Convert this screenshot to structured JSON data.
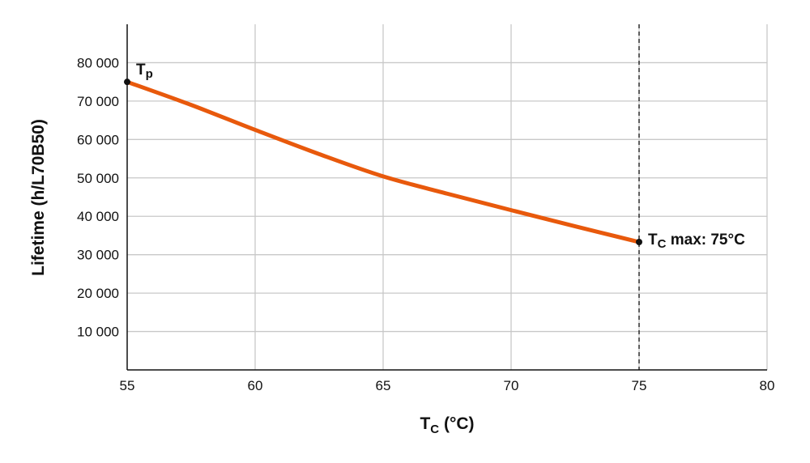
{
  "chart_data": {
    "type": "line",
    "xlabel": {
      "main": "T",
      "sub": "C",
      "rest": " (°C)"
    },
    "ylabel": "Lifetime (h/L70B50)",
    "xlim": [
      55,
      80
    ],
    "ylim": [
      0,
      90000
    ],
    "grid": true,
    "xticks": [
      55,
      60,
      65,
      70,
      75,
      80
    ],
    "xtick_labels": [
      "55",
      "60",
      "65",
      "70",
      "75",
      "80"
    ],
    "yticks": [
      10000,
      20000,
      30000,
      40000,
      50000,
      60000,
      70000,
      80000
    ],
    "ytick_labels": [
      "10 000",
      "20 000",
      "30 000",
      "40 000",
      "50 000",
      "60 000",
      "70 000",
      "80 000"
    ],
    "series": [
      {
        "color": "#e8590c",
        "x": [
          55,
          57.5,
          60,
          62.5,
          65,
          67.5,
          70,
          72.5,
          75
        ],
        "y": [
          75000,
          69000,
          62500,
          56200,
          50400,
          45900,
          41600,
          37400,
          33300
        ]
      }
    ],
    "reference_line": {
      "x": 75,
      "style": "dashed"
    },
    "annotations": [
      {
        "x": 55,
        "y": 75000,
        "main": "T",
        "sub": "p",
        "rest": ""
      },
      {
        "x": 75,
        "y": 33300,
        "main": "T",
        "sub": "C",
        "rest": " max: 75°C"
      }
    ]
  }
}
